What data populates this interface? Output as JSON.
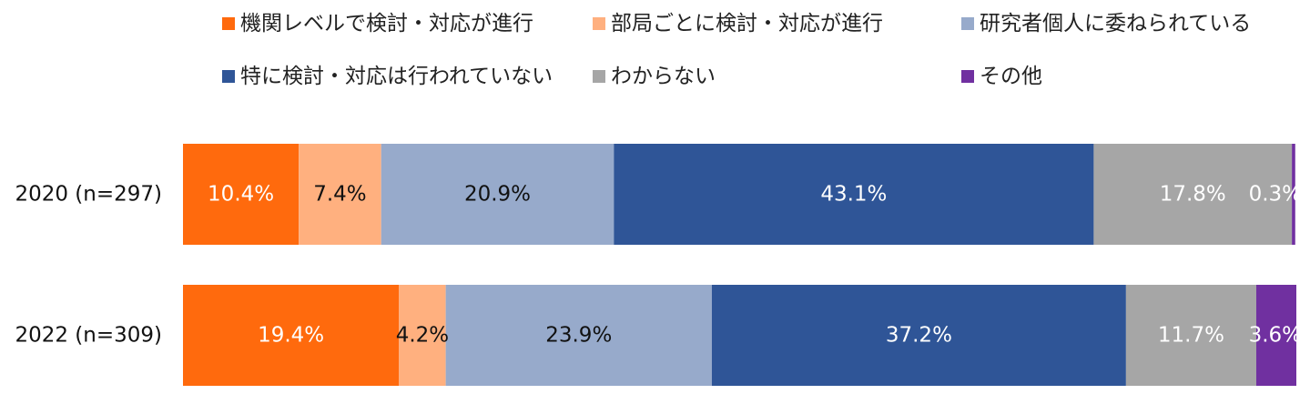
{
  "chart_data": {
    "type": "bar",
    "orientation": "horizontal",
    "stacked": true,
    "percent_stacked": true,
    "title": "",
    "xlabel": "",
    "ylabel": "",
    "xlim": [
      0,
      100
    ],
    "grid": false,
    "legend_position": "top",
    "categories": [
      "2020 (n=297)",
      "2022 (n=309)"
    ],
    "series": [
      {
        "name": "機関レベルで検討・対応が進行",
        "color": "#ff6a0d",
        "label_color": "#ffffff",
        "values": [
          10.4,
          19.4
        ],
        "labels": [
          "10.4%",
          "19.4%"
        ]
      },
      {
        "name": "部局ごとに検討・対応が進行",
        "color": "#ffb07f",
        "label_color": "#111111",
        "values": [
          7.4,
          4.2
        ],
        "labels": [
          "7.4%",
          "4.2%"
        ]
      },
      {
        "name": "研究者個人に委ねられている",
        "color": "#97aacb",
        "label_color": "#111111",
        "values": [
          20.9,
          23.9
        ],
        "labels": [
          "20.9%",
          "23.9%"
        ]
      },
      {
        "name": "特に検討・対応は行われていない",
        "color": "#2f5597",
        "label_color": "#ffffff",
        "values": [
          43.1,
          37.2
        ],
        "labels": [
          "43.1%",
          "37.2%"
        ]
      },
      {
        "name": "わからない",
        "color": "#a6a6a6",
        "label_color": "#ffffff",
        "values": [
          17.8,
          11.7
        ],
        "labels": [
          "17.8%",
          "11.7%"
        ]
      },
      {
        "name": "その他",
        "color": "#7030a0",
        "label_color": "#ffffff",
        "values": [
          0.3,
          3.6
        ],
        "labels": [
          "0.3%",
          "3.6%"
        ]
      }
    ]
  }
}
